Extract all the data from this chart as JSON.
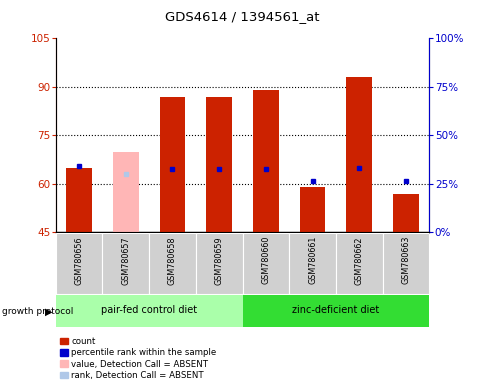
{
  "title": "GDS4614 / 1394561_at",
  "samples": [
    "GSM780656",
    "GSM780657",
    "GSM780658",
    "GSM780659",
    "GSM780660",
    "GSM780661",
    "GSM780662",
    "GSM780663"
  ],
  "red_values": [
    65.0,
    null,
    87.0,
    87.0,
    89.0,
    59.0,
    93.0,
    57.0
  ],
  "pink_values": [
    null,
    70.0,
    null,
    null,
    null,
    null,
    null,
    null
  ],
  "blue_dots": [
    65.5,
    null,
    64.5,
    64.5,
    64.5,
    61.0,
    65.0,
    61.0
  ],
  "lightblue_dots": [
    null,
    63.0,
    null,
    null,
    null,
    null,
    null,
    null
  ],
  "ylim_left": [
    45,
    105
  ],
  "ylim_right": [
    0,
    100
  ],
  "yticks_left": [
    45,
    60,
    75,
    90,
    105
  ],
  "yticks_right": [
    0,
    25,
    50,
    75,
    100
  ],
  "ytick_labels_left": [
    "45",
    "60",
    "75",
    "90",
    "105"
  ],
  "ytick_labels_right": [
    "0%",
    "25%",
    "50%",
    "75%",
    "100%"
  ],
  "hlines": [
    60,
    75,
    90
  ],
  "group1_label": "pair-fed control diet",
  "group2_label": "zinc-deficient diet",
  "group1_color": "#aaffaa",
  "group2_color": "#33dd33",
  "left_axis_color": "#cc2200",
  "right_axis_color": "#0000cc",
  "bar_width": 0.55,
  "legend_items": [
    {
      "label": "count",
      "color": "#cc2200"
    },
    {
      "label": "percentile rank within the sample",
      "color": "#0000cc"
    },
    {
      "label": "value, Detection Call = ABSENT",
      "color": "#ffb6b6"
    },
    {
      "label": "rank, Detection Call = ABSENT",
      "color": "#b0c8e8"
    }
  ]
}
